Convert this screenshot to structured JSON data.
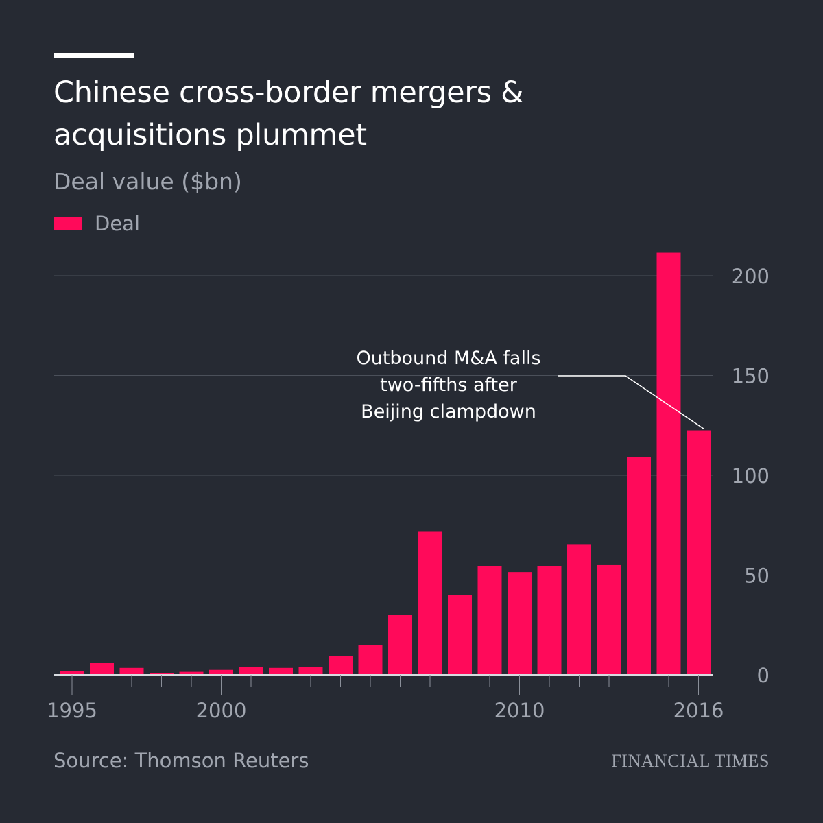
{
  "header": {
    "title": "Chinese cross-border mergers & acquisitions plummet",
    "subtitle": "Deal value ($bn)"
  },
  "legend": {
    "label": "Deal",
    "color": "#ff0a5a"
  },
  "footer": {
    "source": "Source: Thomson Reuters",
    "brand": "FINANCIAL TIMES"
  },
  "colors": {
    "background": "#262a33",
    "bar": "#ff0a5a",
    "grid": "#4b505a",
    "axis_text": "#a1a6b0"
  },
  "chart_data": {
    "type": "bar",
    "title": "Chinese cross-border mergers & acquisitions plummet",
    "ylabel": "Deal value ($bn)",
    "xlabel": "",
    "ylim": [
      0,
      215
    ],
    "yticks": [
      0,
      50,
      100,
      150,
      200
    ],
    "y_axis_side": "right",
    "grid": true,
    "legend_position": "top-left",
    "categories": [
      1995,
      1996,
      1997,
      1998,
      1999,
      2000,
      2001,
      2002,
      2003,
      2004,
      2005,
      2006,
      2007,
      2008,
      2009,
      2010,
      2011,
      2012,
      2013,
      2014,
      2015,
      2016
    ],
    "xtick_labels": [
      "1995",
      "2000",
      "2010",
      "2016"
    ],
    "series": [
      {
        "name": "Deal",
        "values": [
          2,
          6,
          3.5,
          1,
          1.5,
          2.5,
          4,
          3.5,
          4,
          9.5,
          15,
          30,
          72,
          40,
          54.5,
          51.5,
          54.5,
          65.5,
          55,
          109,
          211.5,
          122.5
        ]
      }
    ],
    "annotations": [
      {
        "text_lines": [
          "Outbound M&A falls",
          "two-fifths after",
          "Beijing clampdown"
        ],
        "target_category": 2016
      }
    ]
  }
}
